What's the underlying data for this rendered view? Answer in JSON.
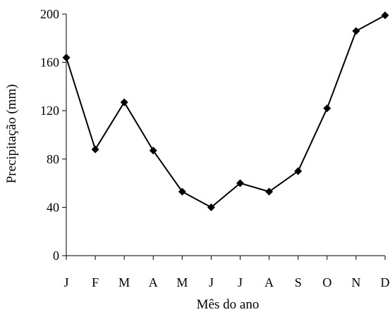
{
  "chart_data": {
    "type": "line",
    "title": "",
    "xlabel": "Mês do ano",
    "ylabel": "Precipitação (mm)",
    "categories": [
      "J",
      "F",
      "M",
      "A",
      "M",
      "J",
      "J",
      "A",
      "S",
      "O",
      "N",
      "D"
    ],
    "series": [
      {
        "values": [
          164,
          88,
          127,
          87,
          53,
          40,
          60,
          53,
          70,
          122,
          186,
          199
        ],
        "color": "#000000",
        "marker": "diamond"
      }
    ],
    "ylim": [
      0,
      200
    ],
    "yticks": [
      0,
      40,
      80,
      120,
      160,
      200
    ],
    "grid": false,
    "legend": "none"
  }
}
